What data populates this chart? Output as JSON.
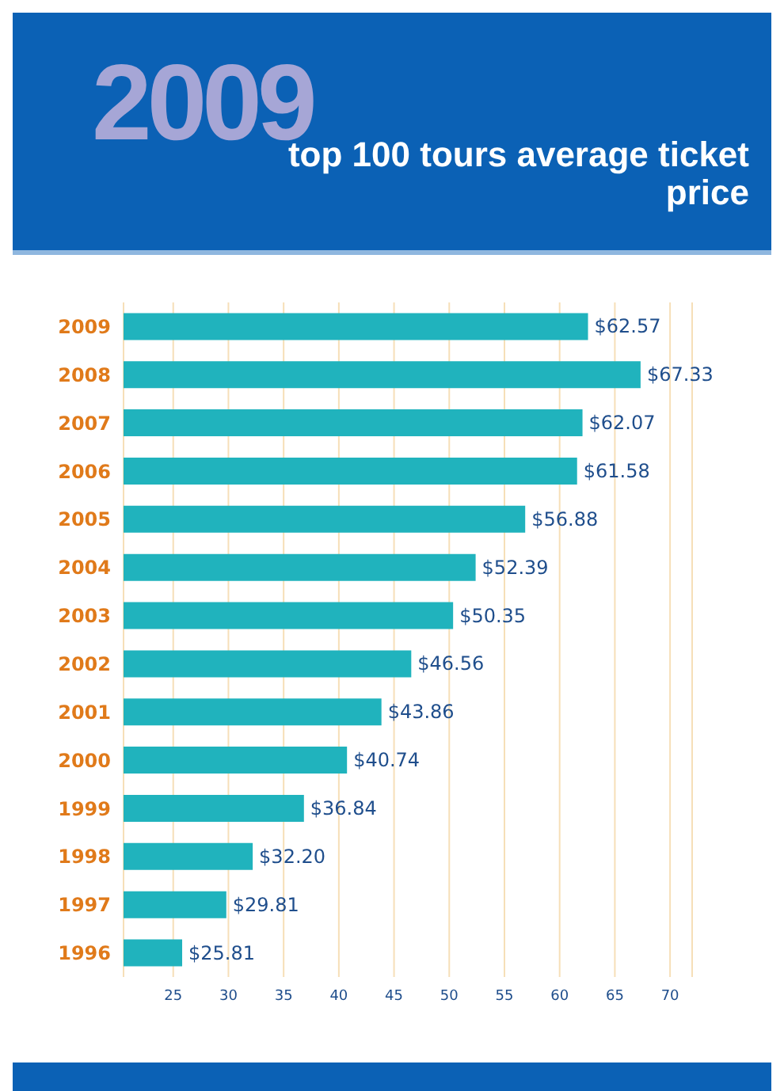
{
  "chart_data": {
    "type": "bar",
    "orientation": "horizontal",
    "subtitle": "2009",
    "title": "top 100 tours average ticket price",
    "categories": [
      "2009",
      "2008",
      "2007",
      "2006",
      "2005",
      "2004",
      "2003",
      "2002",
      "2001",
      "2000",
      "1999",
      "1998",
      "1997",
      "1996"
    ],
    "values": [
      62.57,
      67.33,
      62.07,
      61.58,
      56.88,
      52.39,
      50.35,
      46.56,
      43.86,
      40.74,
      36.84,
      32.2,
      29.81,
      25.81
    ],
    "value_labels": [
      "$62.57",
      "$67.33",
      "$62.07",
      "$61.58",
      "$56.88",
      "$52.39",
      "$50.35",
      "$46.56",
      "$43.86",
      "$40.74",
      "$36.84",
      "$32.20",
      "$29.81",
      "$25.81"
    ],
    "color": "#20b3bd",
    "xlim": [
      20.5,
      72
    ],
    "xticks": [
      25,
      30,
      35,
      40,
      45,
      50,
      55,
      60,
      65,
      70
    ],
    "grid": "x"
  }
}
